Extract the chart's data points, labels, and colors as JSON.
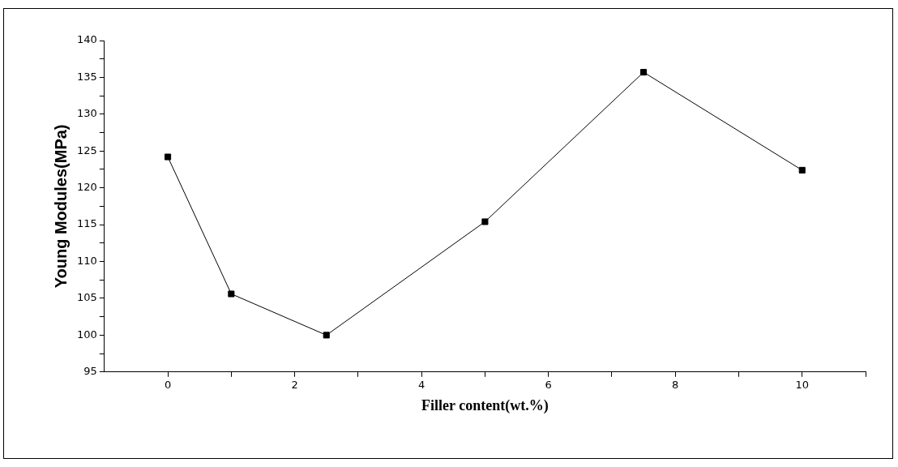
{
  "chart_data": {
    "type": "line",
    "xlabel": "Filler content(wt.%)",
    "ylabel": "Young Modules(MPa)",
    "x": [
      0,
      1,
      2.5,
      5,
      7.5,
      10
    ],
    "series": [
      {
        "color": "#000000",
        "values": [
          124.2,
          105.6,
          100.0,
          115.4,
          135.7,
          122.4
        ]
      }
    ],
    "xlim": [
      -1,
      11
    ],
    "xticks": [
      0,
      {
        "value": 1,
        "label": null
      },
      2,
      {
        "value": 3,
        "label": null
      },
      4,
      {
        "value": 5,
        "label": null
      },
      6,
      {
        "value": 7,
        "label": null
      },
      8,
      {
        "value": 9,
        "label": null
      },
      10,
      {
        "value": 11,
        "label": null
      }
    ],
    "ylim": [
      95,
      140
    ],
    "yticks": [
      95,
      {
        "value": 97.5,
        "label": null
      },
      100,
      {
        "value": 102.5,
        "label": null
      },
      105,
      {
        "value": 107.5,
        "label": null
      },
      110,
      {
        "value": 112.5,
        "label": null
      },
      115,
      {
        "value": 117.5,
        "label": null
      },
      120,
      {
        "value": 122.5,
        "label": null
      },
      125,
      {
        "value": 127.5,
        "label": null
      },
      130,
      {
        "value": 132.5,
        "label": null
      },
      135,
      {
        "value": 137.5,
        "label": null
      },
      140
    ],
    "grid": false,
    "legend": false,
    "marker": "square",
    "line_style": "solid"
  }
}
